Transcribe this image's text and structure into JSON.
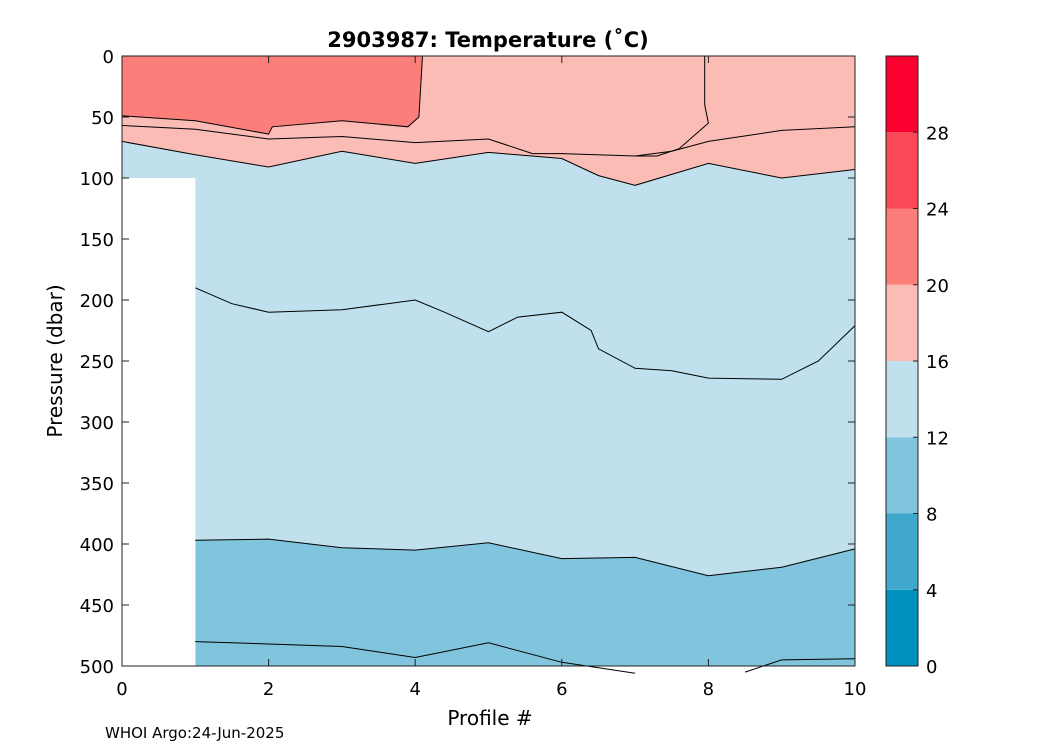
{
  "chart_data": {
    "type": "contour",
    "title": "2903987:  Temperature (˚C)",
    "xlabel": "Profile #",
    "ylabel": "Pressure (dbar)",
    "xlim": [
      0,
      10
    ],
    "ylim": [
      500,
      0
    ],
    "x_ticks": [
      0,
      2,
      4,
      6,
      8,
      10
    ],
    "y_ticks": [
      0,
      50,
      100,
      150,
      200,
      250,
      300,
      350,
      400,
      450,
      500
    ],
    "no_data_region": {
      "x": [
        0,
        1
      ],
      "pressure": [
        100,
        500
      ]
    },
    "colorbar": {
      "ticks": [
        0,
        4,
        8,
        12,
        16,
        20,
        24,
        28
      ],
      "levels": [
        0,
        4,
        8,
        12,
        16,
        20,
        24,
        28,
        32
      ],
      "colors": [
        "#0090be",
        "#40a8cc",
        "#80c4de",
        "#bfe0ec",
        "#fcbcb6",
        "#fb7e7b",
        "#fb4858",
        "#fc0030"
      ]
    },
    "regions": [
      {
        "name": "band-8-12",
        "bottom_color_index": 2,
        "top": [
          [
            1,
            397
          ],
          [
            2,
            396
          ],
          [
            3,
            403
          ],
          [
            4,
            405
          ],
          [
            5,
            399
          ],
          [
            6,
            412
          ],
          [
            7,
            411
          ],
          [
            8,
            426
          ],
          [
            9,
            419
          ],
          [
            10,
            404
          ]
        ]
      },
      {
        "name": "band-12-16",
        "color_index": 3,
        "top": [
          [
            0,
            70
          ],
          [
            1,
            81
          ],
          [
            2,
            91
          ],
          [
            3,
            78
          ],
          [
            4,
            88
          ],
          [
            5,
            79
          ],
          [
            6,
            84
          ],
          [
            6.5,
            98
          ],
          [
            7,
            106
          ],
          [
            8,
            88
          ],
          [
            9,
            100
          ],
          [
            10,
            93
          ]
        ]
      },
      {
        "name": "band-16-20",
        "color_index": 4,
        "top": [
          [
            0,
            0
          ],
          [
            10,
            0
          ]
        ]
      },
      {
        "name": "band-20-24",
        "color_index": 5,
        "polygon": [
          [
            0,
            0
          ],
          [
            4.1,
            0
          ],
          [
            4.05,
            50
          ],
          [
            3.9,
            58
          ],
          [
            3,
            53
          ],
          [
            2.05,
            58
          ],
          [
            2,
            64
          ],
          [
            1,
            53
          ],
          [
            0,
            49
          ]
        ]
      }
    ],
    "contours": [
      {
        "level": 8,
        "points": [
          [
            1,
            480
          ],
          [
            2,
            482
          ],
          [
            3,
            484
          ],
          [
            4,
            493
          ],
          [
            5,
            481
          ],
          [
            6,
            497
          ],
          [
            7,
            506
          ]
        ]
      },
      {
        "level": 8,
        "points": [
          [
            8.5,
            505
          ],
          [
            9,
            495
          ],
          [
            10,
            494
          ]
        ]
      },
      {
        "level": 12,
        "points": [
          [
            1,
            397
          ],
          [
            2,
            396
          ],
          [
            3,
            403
          ],
          [
            4,
            405
          ],
          [
            5,
            399
          ],
          [
            6,
            412
          ],
          [
            7,
            411
          ],
          [
            8,
            426
          ],
          [
            9,
            419
          ],
          [
            10,
            404
          ]
        ]
      },
      {
        "level": 14,
        "points": [
          [
            1,
            190
          ],
          [
            1.5,
            203
          ],
          [
            2,
            210
          ],
          [
            3,
            208
          ],
          [
            4,
            200
          ],
          [
            4.4,
            210
          ],
          [
            5,
            226
          ],
          [
            5.4,
            214
          ],
          [
            6,
            210
          ],
          [
            6.4,
            225
          ],
          [
            6.5,
            240
          ],
          [
            7,
            256
          ],
          [
            7.5,
            258
          ],
          [
            8,
            264
          ],
          [
            9,
            265
          ],
          [
            9.5,
            250
          ],
          [
            10,
            221
          ]
        ]
      },
      {
        "level": 16,
        "points": [
          [
            0,
            70
          ],
          [
            1,
            81
          ],
          [
            2,
            91
          ],
          [
            3,
            78
          ],
          [
            4,
            88
          ],
          [
            5,
            79
          ],
          [
            6,
            84
          ],
          [
            6.5,
            98
          ],
          [
            7,
            106
          ],
          [
            8,
            88
          ],
          [
            9,
            100
          ],
          [
            10,
            93
          ]
        ]
      },
      {
        "level": 18,
        "points": [
          [
            0,
            57
          ],
          [
            1,
            60
          ],
          [
            2,
            68
          ],
          [
            3,
            66
          ],
          [
            4,
            71
          ],
          [
            5,
            68
          ],
          [
            5.6,
            80
          ],
          [
            6,
            80
          ],
          [
            7,
            82
          ],
          [
            7.5,
            78
          ],
          [
            8,
            70
          ],
          [
            9,
            61
          ],
          [
            10,
            58
          ]
        ]
      },
      {
        "level": 20,
        "points": [
          [
            0,
            49
          ],
          [
            1,
            53
          ],
          [
            2,
            64
          ],
          [
            2.05,
            58
          ],
          [
            3,
            53
          ],
          [
            3.9,
            58
          ],
          [
            4.05,
            50
          ],
          [
            4.1,
            0
          ]
        ]
      },
      {
        "level": 18,
        "points": [
          [
            7.95,
            0
          ],
          [
            7.95,
            40
          ],
          [
            8,
            55
          ],
          [
            7.6,
            76
          ],
          [
            7.3,
            82
          ],
          [
            7,
            82
          ]
        ]
      }
    ],
    "footer": "WHOI Argo:24-Jun-2025"
  }
}
